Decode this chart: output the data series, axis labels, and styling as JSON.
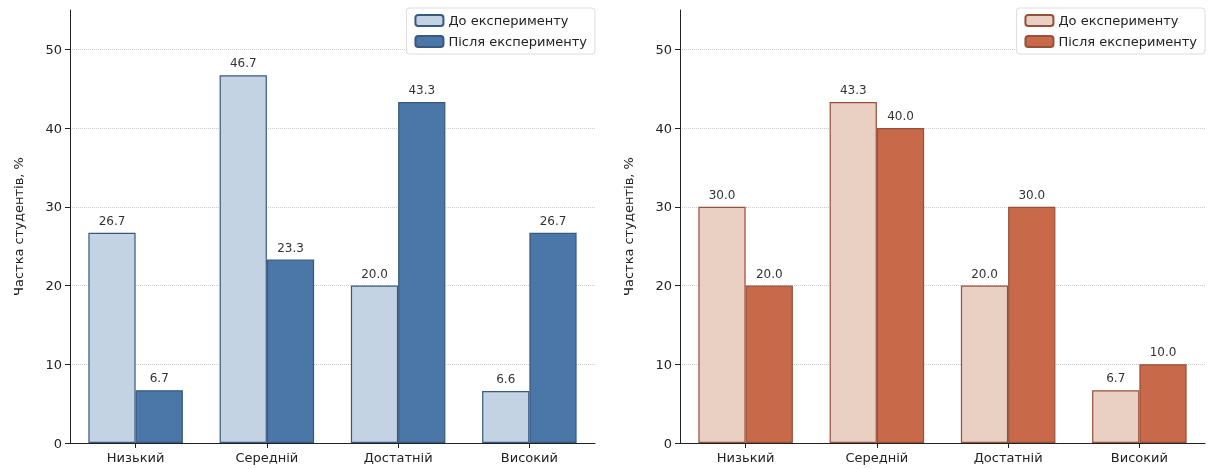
{
  "chart_data": [
    {
      "type": "bar",
      "ylabel": "Частка студентів, %",
      "categories": [
        "Низький",
        "Середній",
        "Достатній",
        "Високий"
      ],
      "series": [
        {
          "name": "До експерименту",
          "color": "#c3d3e3",
          "values": [
            26.7,
            46.7,
            20.0,
            6.6
          ],
          "value_labels": [
            "26.7",
            "46.7",
            "20.0",
            "6.6"
          ]
        },
        {
          "name": "Після експерименту",
          "color": "#4a76a8",
          "values": [
            6.7,
            23.3,
            43.3,
            26.7
          ],
          "value_labels": [
            "6.7",
            "23.3",
            "43.3",
            "26.7"
          ]
        }
      ],
      "ylim": [
        0,
        55
      ],
      "yticks": [
        0,
        10,
        20,
        30,
        40,
        50
      ],
      "grid": "y",
      "legend": "top right"
    },
    {
      "type": "bar",
      "ylabel": "Частка студентів, %",
      "categories": [
        "Низький",
        "Середній",
        "Достатній",
        "Високий"
      ],
      "series": [
        {
          "name": "До експерименту",
          "color": "#ead0c3",
          "values": [
            30.0,
            43.3,
            20.0,
            6.7
          ],
          "value_labels": [
            "30.0",
            "43.3",
            "20.0",
            "6.7"
          ]
        },
        {
          "name": "Після експерименту",
          "color": "#c8694a",
          "values": [
            20.0,
            40.0,
            30.0,
            10.0
          ],
          "value_labels": [
            "20.0",
            "40.0",
            "30.0",
            "10.0"
          ]
        }
      ],
      "ylim": [
        0,
        55
      ],
      "yticks": [
        0,
        10,
        20,
        30,
        40,
        50
      ],
      "grid": "y",
      "legend": "top right"
    }
  ]
}
